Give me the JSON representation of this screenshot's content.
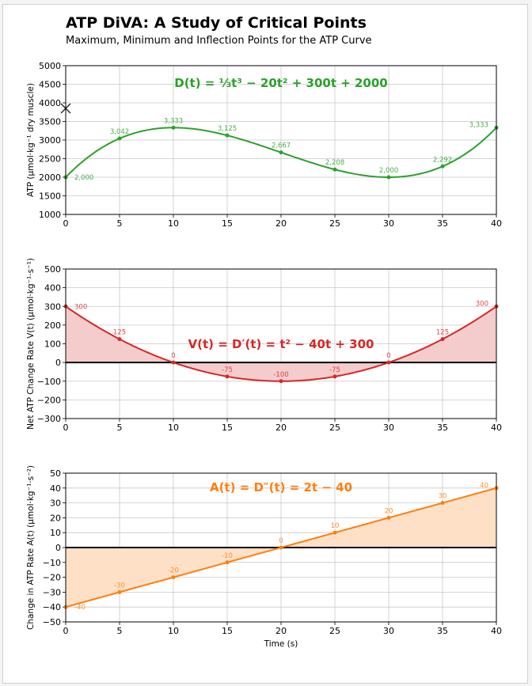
{
  "title": "ATP DiVA: A Study of Critical Points",
  "subtitle": "Maximum, Minimum and Inflection Points for the ATP Curve",
  "chart_data": [
    {
      "type": "line",
      "equation": "D(t) = ⅓t³ − 20t² + 300t + 2000",
      "xlabel": "",
      "ylabel": "ATP (µmol·kg⁻¹ dry muscle)",
      "xlim": [
        0,
        40
      ],
      "ylim": [
        1000,
        5000
      ],
      "xticks": [
        0,
        5,
        10,
        15,
        20,
        25,
        30,
        35,
        40
      ],
      "yticks": [
        1000,
        1500,
        2000,
        2500,
        3000,
        3500,
        4000,
        4500,
        5000
      ],
      "grid": true,
      "color": "#2ca02c",
      "fill": false,
      "coeffs": [
        2000,
        300,
        -20,
        0.3333333
      ],
      "points": {
        "x": [
          0,
          5,
          10,
          15,
          20,
          25,
          30,
          35,
          40
        ],
        "y": [
          2000,
          3042,
          3333,
          3125,
          2667,
          2208,
          2000,
          2292,
          3333
        ]
      },
      "data_labels": [
        "2,000",
        "3,042",
        "3,333",
        "3,125",
        "2,667",
        "2,208",
        "2,000",
        "2,292",
        "3,333"
      ]
    },
    {
      "type": "area",
      "equation": "V(t) = D′(t) = t² − 40t + 300",
      "xlabel": "",
      "ylabel": "Net ATP Change Rate V(t)  (µmol·kg⁻¹·s⁻¹)",
      "xlim": [
        0,
        40
      ],
      "ylim": [
        -300,
        500
      ],
      "xticks": [
        0,
        5,
        10,
        15,
        20,
        25,
        30,
        35,
        40
      ],
      "yticks": [
        -300,
        -200,
        -100,
        0,
        100,
        200,
        300,
        400,
        500
      ],
      "grid": true,
      "color": "#d62728",
      "fillColor": "#f5cccc",
      "fill": true,
      "coeffs": [
        300,
        -40,
        1,
        0
      ],
      "points": {
        "x": [
          0,
          5,
          10,
          15,
          20,
          25,
          30,
          35,
          40
        ],
        "y": [
          300,
          125,
          0,
          -75,
          -100,
          -75,
          0,
          125,
          300
        ]
      },
      "data_labels": [
        "300",
        "125",
        "0",
        "-75",
        "-100",
        "-75",
        "0",
        "125",
        "300"
      ]
    },
    {
      "type": "area",
      "equation": "A(t) = D″(t) = 2t − 40",
      "xlabel": "Time (s)",
      "ylabel": "Change in ATP Rate A(t)  (µmol·kg⁻¹·s⁻²)",
      "xlim": [
        0,
        40
      ],
      "ylim": [
        -50,
        50
      ],
      "xticks": [
        0,
        5,
        10,
        15,
        20,
        25,
        30,
        35,
        40
      ],
      "yticks": [
        -50,
        -40,
        -30,
        -20,
        -10,
        0,
        10,
        20,
        30,
        40,
        50
      ],
      "grid": true,
      "color": "#ff7f0e",
      "fillColor": "#fde0c6",
      "fill": true,
      "coeffs": [
        -40,
        2,
        0,
        0
      ],
      "points": {
        "x": [
          0,
          5,
          10,
          15,
          20,
          25,
          30,
          35,
          40
        ],
        "y": [
          -40,
          -30,
          -20,
          -10,
          0,
          10,
          20,
          30,
          40
        ]
      },
      "data_labels": [
        "-40",
        "-30",
        "-20",
        "-10",
        "0",
        "10",
        "20",
        "30",
        "40"
      ]
    }
  ]
}
